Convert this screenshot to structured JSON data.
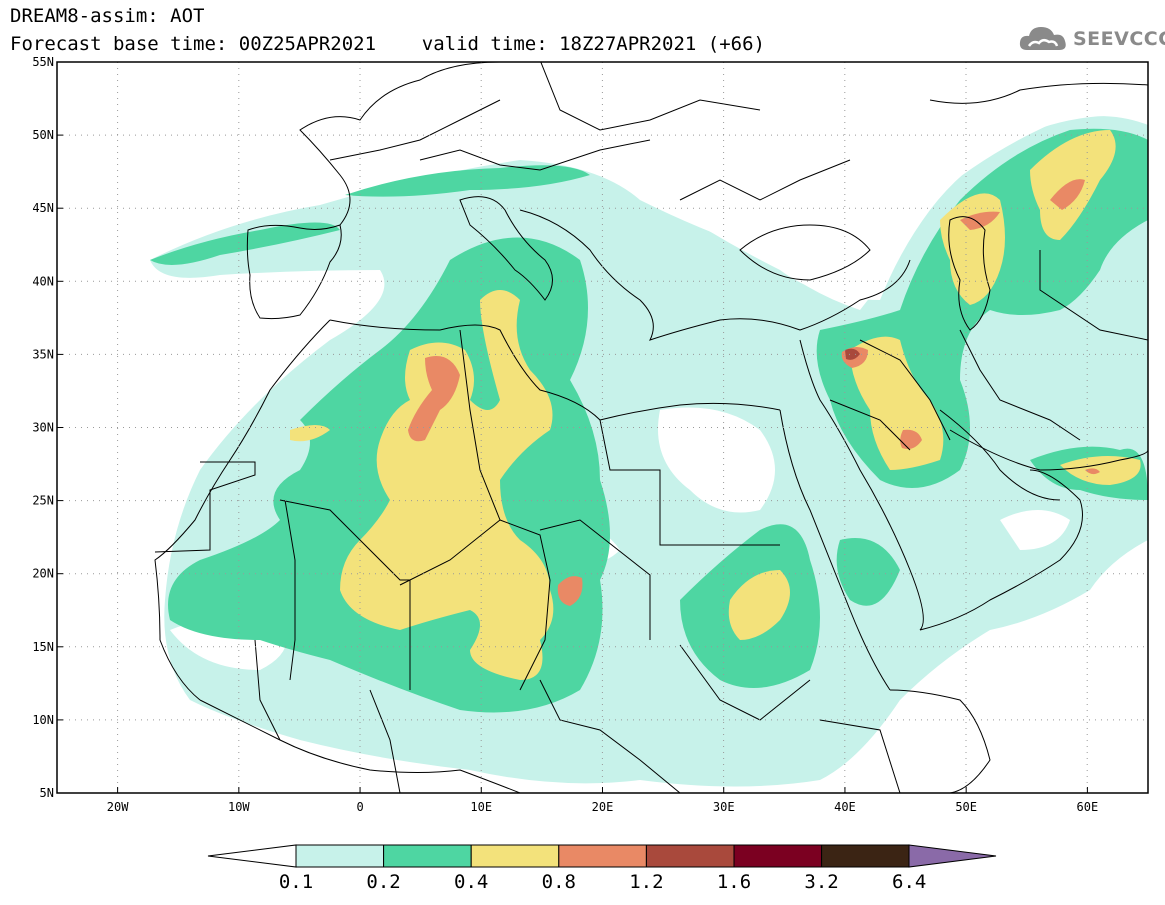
{
  "title": {
    "line1": "DREAM8-assim: AOT",
    "line2": "Forecast base time: 00Z25APR2021    valid time: 18Z27APR2021 (+66)"
  },
  "logo": {
    "text": "SEEVCCC",
    "icon": "cloud-icon"
  },
  "map": {
    "lat_labels": [
      "55N",
      "50N",
      "45N",
      "40N",
      "35N",
      "30N",
      "25N",
      "20N",
      "15N",
      "10N",
      "5N"
    ],
    "lon_labels": [
      "20W",
      "10W",
      "0",
      "10E",
      "20E",
      "30E",
      "40E",
      "50E",
      "60E"
    ],
    "lat_range": [
      5,
      55
    ],
    "lon_range": [
      -25,
      65
    ]
  },
  "colorbar": {
    "labels": [
      "0.1",
      "0.2",
      "0.4",
      "0.8",
      "1.2",
      "1.6",
      "3.2",
      "6.4"
    ],
    "colors": [
      "#c7f2ea",
      "#4ed6a2",
      "#f3e27b",
      "#e98965",
      "#a9493c",
      "#7b0021",
      "#3b2414",
      "#8a6aa8"
    ]
  }
}
